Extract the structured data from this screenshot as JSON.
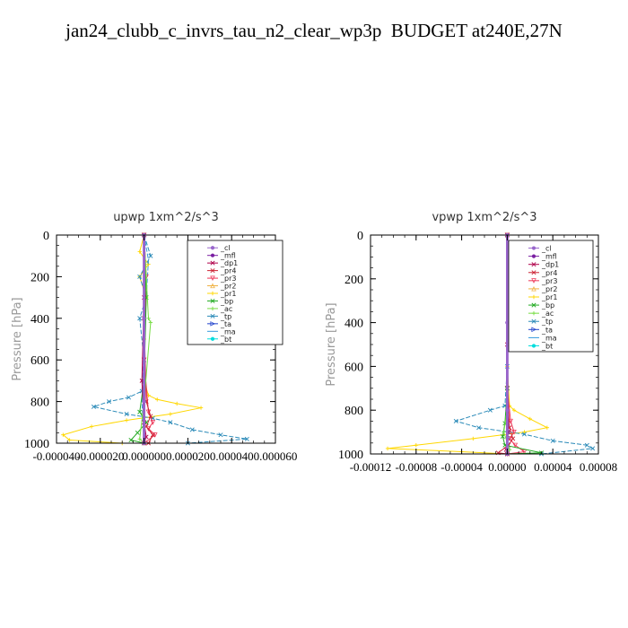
{
  "title": "jan24_clubb_c_invrs_tau_n2_clear_wp3p  BUDGET at240E,27N",
  "legend_items": [
    {
      "label": "_cl",
      "color": "#9966cc",
      "marker": "o"
    },
    {
      "label": "_mfl",
      "color": "#7a1fa2",
      "marker": "o"
    },
    {
      "label": "_dp1",
      "color": "#b0004a",
      "marker": "x"
    },
    {
      "label": "_pr4",
      "color": "#cc2233",
      "marker": "x"
    },
    {
      "label": "_pr3",
      "color": "#ee3355",
      "marker": "v"
    },
    {
      "label": "_pr2",
      "color": "#f0b040",
      "marker": "^"
    },
    {
      "label": "_pr1",
      "color": "#ffd700",
      "marker": "+"
    },
    {
      "label": "_bp",
      "color": "#22aa22",
      "marker": "x"
    },
    {
      "label": "_ac",
      "color": "#77dd44",
      "marker": "+"
    },
    {
      "label": "_tp",
      "color": "#2a8ab8",
      "marker": "x"
    },
    {
      "label": "_ta",
      "color": "#2244cc",
      "marker": ">"
    },
    {
      "label": "_ma",
      "color": "#3399dd",
      "marker": "-"
    },
    {
      "label": "_bt",
      "color": "#00dddd",
      "marker": "*"
    }
  ],
  "chart_data": [
    {
      "type": "line",
      "title": "upwp   1xm^2/s^3",
      "ylabel": "Pressure [hPa]",
      "xlim": [
        -4e-05,
        6e-05
      ],
      "ylim": [
        1000,
        0
      ],
      "xticks": [
        -4e-05,
        -2e-05,
        0.0,
        2e-05,
        4e-05,
        6e-05
      ],
      "xtick_labels": [
        "-0.000040",
        "-0.000020",
        "0.000000",
        "0.000020",
        "0.000040",
        "0.000060"
      ],
      "yticks": [
        0,
        200,
        400,
        600,
        800,
        1000
      ],
      "ytick_labels": [
        "0",
        "200",
        "400",
        "600",
        "800",
        "1000"
      ],
      "legend_position": "top-right",
      "series": [
        {
          "name": "_pr1",
          "color": "#ffd700",
          "x": [
            0.0,
            -2e-06,
            2e-06,
            -2e-06,
            1e-06,
            0.0,
            0.0,
            2e-06,
            6e-06,
            1.5e-05,
            2.6e-05,
            1.2e-05,
            -8e-06,
            -2.4e-05,
            -3.7e-05,
            -3.4e-05,
            -1e-05
          ],
          "y": [
            0,
            80,
            140,
            200,
            300,
            500,
            700,
            770,
            790,
            810,
            830,
            860,
            890,
            920,
            960,
            985,
            1000
          ]
        },
        {
          "name": "_tp",
          "color": "#2a8ab8",
          "x": [
            0.0,
            3e-06,
            -2e-06,
            1e-06,
            -2e-06,
            0.0,
            -1e-06,
            -7e-06,
            -1.6e-05,
            -2.3e-05,
            -8e-06,
            4e-06,
            1.2e-05,
            2.2e-05,
            3.5e-05,
            4.7e-05,
            2e-05
          ],
          "y": [
            0,
            100,
            200,
            300,
            400,
            600,
            750,
            780,
            800,
            825,
            860,
            880,
            900,
            935,
            960,
            980,
            1000
          ]
        },
        {
          "name": "_ma",
          "color": "#3399dd",
          "x": [
            0.0,
            2e-06,
            1e-06,
            0.0,
            -1e-06,
            0.0
          ],
          "y": [
            0,
            120,
            300,
            500,
            800,
            1000
          ]
        },
        {
          "name": "_pr3",
          "color": "#ee3355",
          "x": [
            0.0,
            1e-06,
            0.0,
            2e-06,
            4e-06,
            2e-06,
            5e-06,
            0.0
          ],
          "y": [
            0,
            200,
            600,
            850,
            900,
            930,
            960,
            1000
          ]
        },
        {
          "name": "_pr4",
          "color": "#cc2233",
          "x": [
            0.0,
            0.0,
            1e-06,
            3e-06,
            1e-06,
            4e-06,
            2e-06
          ],
          "y": [
            0,
            400,
            800,
            870,
            920,
            960,
            1000
          ]
        },
        {
          "name": "_bp",
          "color": "#22aa22",
          "x": [
            0.0,
            1e-06,
            0.0,
            -2e-06,
            1e-06,
            -3e-06,
            -6e-06,
            0.0
          ],
          "y": [
            0,
            300,
            700,
            850,
            900,
            950,
            985,
            1000
          ]
        },
        {
          "name": "_ac",
          "color": "#77dd44",
          "x": [
            0.0,
            2e-06,
            3e-06,
            0.0,
            -2e-06,
            0.0
          ],
          "y": [
            0,
            400,
            420,
            800,
            980,
            1000
          ]
        },
        {
          "name": "_dp1",
          "color": "#b0004a",
          "x": [
            0.0,
            0.0,
            -1e-06,
            0.0,
            1e-06,
            0.0
          ],
          "y": [
            0,
            300,
            700,
            900,
            970,
            1000
          ]
        },
        {
          "name": "_mfl",
          "color": "#7a1fa2",
          "x": [
            0.0,
            0.0,
            0.0,
            0.0
          ],
          "y": [
            0,
            400,
            800,
            1000
          ]
        },
        {
          "name": "_cl",
          "color": "#9966cc",
          "x": [
            0.0,
            0.0,
            0.0,
            0.0
          ],
          "y": [
            0,
            400,
            800,
            1000
          ]
        }
      ]
    },
    {
      "type": "line",
      "title": "vpwp   1xm^2/s^3",
      "ylabel": "Pressure [hPa]",
      "xlim": [
        -0.00012,
        8e-05
      ],
      "ylim": [
        1000,
        0
      ],
      "xticks": [
        -0.00012,
        -8e-05,
        -4e-05,
        0.0,
        4e-05,
        8e-05
      ],
      "xtick_labels": [
        "-0.00012",
        "-0.00008",
        "-0.00004",
        "0.00000",
        "0.00004",
        "0.00008"
      ],
      "yticks": [
        0,
        200,
        400,
        600,
        800,
        1000
      ],
      "ytick_labels": [
        "0",
        "200",
        "400",
        "600",
        "800",
        "1000"
      ],
      "legend_position": "top-right",
      "series": [
        {
          "name": "_pr1",
          "color": "#ffd700",
          "x": [
            0.0,
            0.0,
            2e-06,
            6e-06,
            2e-05,
            3.5e-05,
            1.5e-05,
            -3e-05,
            -8e-05,
            -0.000105,
            -4e-05,
            0.0
          ],
          "y": [
            0,
            600,
            780,
            800,
            840,
            880,
            900,
            930,
            960,
            975,
            990,
            1000
          ]
        },
        {
          "name": "_tp",
          "color": "#2a8ab8",
          "x": [
            0.0,
            0.0,
            -2e-06,
            -1.5e-05,
            -4.5e-05,
            -2.5e-05,
            1.5e-05,
            4e-05,
            7e-05,
            7.5e-05,
            3e-05
          ],
          "y": [
            0,
            600,
            780,
            800,
            850,
            880,
            910,
            940,
            960,
            975,
            1000
          ]
        },
        {
          "name": "_ma",
          "color": "#3399dd",
          "x": [
            0.0,
            0.0,
            1e-06,
            2e-06,
            0.0
          ],
          "y": [
            0,
            600,
            850,
            950,
            1000
          ]
        },
        {
          "name": "_pr3",
          "color": "#ee3355",
          "x": [
            0.0,
            0.0,
            3e-06,
            6e-06,
            2e-06,
            7e-06,
            1.5e-05,
            0.0
          ],
          "y": [
            0,
            700,
            850,
            900,
            930,
            960,
            990,
            1000
          ]
        },
        {
          "name": "_pr4",
          "color": "#cc2233",
          "x": [
            0.0,
            0.0,
            2e-06,
            5e-06,
            1e-06,
            -8e-06,
            0.0
          ],
          "y": [
            0,
            700,
            880,
            930,
            960,
            995,
            1000
          ]
        },
        {
          "name": "_bp",
          "color": "#22aa22",
          "x": [
            0.0,
            0.0,
            -2e-06,
            -4e-06,
            -2e-06,
            3e-05,
            0.0
          ],
          "y": [
            0,
            700,
            860,
            920,
            960,
            995,
            1000
          ]
        },
        {
          "name": "_ac",
          "color": "#77dd44",
          "x": [
            0.0,
            0.0,
            -3e-06,
            2e-06,
            0.0
          ],
          "y": [
            0,
            800,
            900,
            980,
            1000
          ]
        },
        {
          "name": "_dp1",
          "color": "#b0004a",
          "x": [
            0.0,
            0.0,
            1e-06,
            -1e-06,
            0.0
          ],
          "y": [
            0,
            500,
            900,
            980,
            1000
          ]
        },
        {
          "name": "_mfl",
          "color": "#7a1fa2",
          "x": [
            0.0,
            0.0,
            0.0,
            0.0
          ],
          "y": [
            0,
            400,
            800,
            1000
          ]
        },
        {
          "name": "_cl",
          "color": "#9966cc",
          "x": [
            0.0,
            0.0,
            0.0,
            0.0
          ],
          "y": [
            0,
            400,
            800,
            1000
          ]
        }
      ]
    }
  ]
}
